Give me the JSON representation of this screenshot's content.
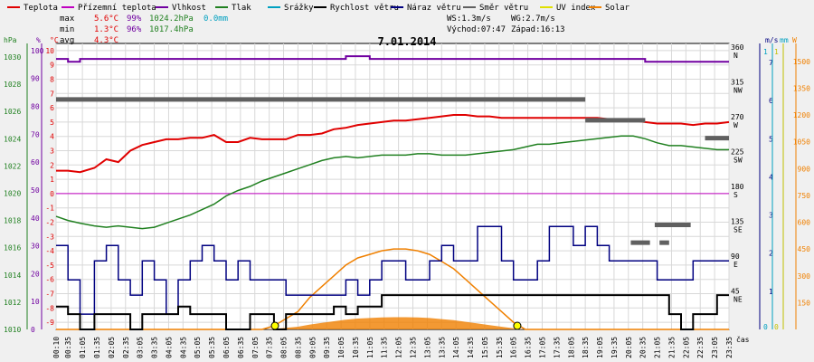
{
  "chart_data": {
    "type": "line",
    "title": "7.01.2014",
    "legend": [
      {
        "name": "Teplota",
        "color": "#e00000"
      },
      {
        "name": "Přízemní teplota",
        "color": "#c000c0"
      },
      {
        "name": "Vlhkost",
        "color": "#7000a0"
      },
      {
        "name": "Tlak",
        "color": "#208020"
      },
      {
        "name": "Srážky",
        "color": "#00a0c0"
      },
      {
        "name": "Rychlost větru",
        "color": "#000000"
      },
      {
        "name": "Náraz větru",
        "color": "#000080"
      },
      {
        "name": "Směr větru",
        "color": "#606060"
      },
      {
        "name": "UV index",
        "color": "#e0e000"
      },
      {
        "name": "Solar",
        "color": "#f08000"
      }
    ],
    "stats": {
      "max_label": "max",
      "max_temp": "5.6°C",
      "max_hum": "99%",
      "max_press": "1024.2hPa",
      "rain": "0.0mm",
      "min_label": "min",
      "min_temp": "1.3°C",
      "min_hum": "96%",
      "min_press": "1017.4hPa",
      "avg_label": "avg",
      "avg_temp": "4.3°C",
      "ws": "WS:1.3m/s",
      "wg": "WG:2.7m/s",
      "sunrise": "Východ:07:47",
      "sunset": "Západ:16:13"
    },
    "axes": {
      "hpa_unit": "hPa",
      "pct_unit": "%",
      "deg_unit": "°C",
      "ms_unit": "m/s",
      "mm_unit": "mm",
      "w_unit": "W",
      "x_unit": "čas",
      "hpa": [
        "1030",
        "1028",
        "1026",
        "1024",
        "1022",
        "1020",
        "1018",
        "1016",
        "1014",
        "1012",
        "1010"
      ],
      "pct": [
        "100",
        "90",
        "80",
        "70",
        "60",
        "50",
        "40",
        "30",
        "20",
        "10",
        "0"
      ],
      "deg": [
        "10",
        "9",
        "8",
        "7",
        "6",
        "5",
        "4",
        "3",
        "2",
        "1",
        "0",
        "-1",
        "-2",
        "-3",
        "-4",
        "-5",
        "-6",
        "-7",
        "-8",
        "-9"
      ],
      "dir": [
        {
          "deg": "360",
          "dir": "N"
        },
        {
          "deg": "315",
          "dir": "NW"
        },
        {
          "deg": "270",
          "dir": "W"
        },
        {
          "deg": "225",
          "dir": "SW"
        },
        {
          "deg": "180",
          "dir": "S"
        },
        {
          "deg": "135",
          "dir": "SE"
        },
        {
          "deg": "90",
          "dir": "E"
        },
        {
          "deg": "45",
          "dir": "NE"
        }
      ],
      "ms": [
        "7",
        "6",
        "5",
        "4",
        "3",
        "2",
        "1"
      ],
      "mm": [
        "1",
        "0"
      ],
      "w": [
        "1500",
        "1350",
        "1200",
        "1050",
        "900",
        "750",
        "600",
        "450",
        "300",
        "150"
      ],
      "uv": [
        "1",
        "0"
      ],
      "temp_range": [
        -9.5,
        10.5
      ],
      "pressure_range": [
        1010,
        1031
      ],
      "wind_ms_range": [
        0,
        7.5
      ],
      "solar_range": [
        0,
        1600
      ]
    },
    "x": [
      "00:10",
      "00:35",
      "01:00",
      "01:30",
      "01:55",
      "02:20",
      "02:45",
      "03:10",
      "03:35",
      "04:00",
      "04:25",
      "04:50",
      "05:15",
      "05:40",
      "06:05",
      "06:30",
      "06:55",
      "07:20",
      "07:45",
      "08:10",
      "08:35",
      "09:00",
      "09:25",
      "09:50",
      "10:15",
      "10:40",
      "11:05",
      "11:30",
      "11:55",
      "12:20",
      "12:45",
      "13:10",
      "13:35",
      "14:00",
      "14:25",
      "14:50",
      "15:15",
      "15:40",
      "16:05",
      "16:30",
      "16:55",
      "17:20",
      "17:45",
      "18:10",
      "18:35",
      "19:00",
      "19:25",
      "19:50",
      "20:15",
      "20:40",
      "21:05",
      "21:30",
      "21:55",
      "22:20",
      "22:45",
      "23:10",
      "23:35"
    ],
    "x_ticks": [
      "00:10",
      "00:35",
      "01:05",
      "01:35",
      "02:05",
      "02:35",
      "03:05",
      "03:35",
      "04:05",
      "04:35",
      "05:05",
      "05:35",
      "06:05",
      "06:35",
      "07:05",
      "07:35",
      "08:05",
      "08:35",
      "09:05",
      "09:35",
      "10:05",
      "10:35",
      "11:05",
      "11:35",
      "12:05",
      "12:35",
      "13:05",
      "13:35",
      "14:05",
      "14:35",
      "15:05",
      "15:35",
      "16:05",
      "16:35",
      "17:05",
      "17:35",
      "18:05",
      "18:35",
      "19:05",
      "19:35",
      "20:05",
      "20:35",
      "21:05",
      "21:35",
      "22:05",
      "22:35",
      "23:05",
      "23:35"
    ],
    "series": [
      {
        "name": "Teplota",
        "unit": "°C",
        "values": [
          1.6,
          1.6,
          1.5,
          1.8,
          2.4,
          2.2,
          3.0,
          3.4,
          3.6,
          3.8,
          3.8,
          3.9,
          3.9,
          4.1,
          3.6,
          3.6,
          3.9,
          3.8,
          3.8,
          3.8,
          4.1,
          4.1,
          4.2,
          4.5,
          4.6,
          4.8,
          4.9,
          5.0,
          5.1,
          5.1,
          5.2,
          5.3,
          5.4,
          5.5,
          5.5,
          5.4,
          5.4,
          5.3,
          5.3,
          5.3,
          5.3,
          5.3,
          5.3,
          5.3,
          5.3,
          5.3,
          5.2,
          5.2,
          5.1,
          5.0,
          4.9,
          4.9,
          4.9,
          4.8,
          4.9,
          4.9,
          5.0
        ]
      },
      {
        "name": "Přízemní teplota",
        "unit": "°C",
        "values": [
          0.0,
          0.0,
          0.0,
          0.0,
          0.0,
          0.0,
          0.0,
          0.0,
          0.0,
          0.0,
          0.0,
          0.0,
          0.0,
          0.0,
          0.0,
          0.0,
          0.0,
          0.0,
          0.0,
          0.0,
          0.0,
          0.0,
          0.0,
          0.0,
          0.0,
          0.0,
          0.0,
          0.0,
          0.0,
          0.0,
          0.0,
          0.0,
          0.0,
          0.0,
          0.0,
          0.0,
          0.0,
          0.0,
          0.0,
          0.0,
          0.0,
          0.0,
          0.0,
          0.0,
          0.0,
          0.0,
          0.0,
          0.0,
          0.0,
          0.0,
          0.0,
          0.0,
          0.0,
          0.0,
          0.0,
          0.0,
          0.0
        ]
      },
      {
        "name": "Vlhkost",
        "unit": "%",
        "values": [
          97,
          96,
          97,
          97,
          97,
          97,
          97,
          97,
          97,
          97,
          97,
          97,
          97,
          97,
          97,
          97,
          97,
          97,
          97,
          97,
          97,
          97,
          97,
          97,
          98,
          98,
          97,
          97,
          97,
          97,
          97,
          97,
          97,
          97,
          97,
          97,
          97,
          97,
          97,
          97,
          97,
          97,
          97,
          97,
          97,
          97,
          97,
          97,
          97,
          96,
          96,
          96,
          96,
          96,
          96,
          96,
          96
        ]
      },
      {
        "name": "Tlak",
        "unit": "hPa",
        "values": [
          1018.3,
          1018.0,
          1017.8,
          1017.6,
          1017.5,
          1017.6,
          1017.5,
          1017.4,
          1017.5,
          1017.8,
          1018.1,
          1018.4,
          1018.8,
          1019.2,
          1019.8,
          1020.2,
          1020.5,
          1020.9,
          1021.2,
          1021.5,
          1021.8,
          1022.1,
          1022.4,
          1022.6,
          1022.7,
          1022.6,
          1022.7,
          1022.8,
          1022.8,
          1022.8,
          1022.9,
          1022.9,
          1022.8,
          1022.8,
          1022.8,
          1022.9,
          1023.0,
          1023.1,
          1023.2,
          1023.4,
          1023.6,
          1023.6,
          1023.7,
          1023.8,
          1023.9,
          1024.0,
          1024.1,
          1024.2,
          1024.2,
          1024.0,
          1023.7,
          1023.5,
          1023.5,
          1023.4,
          1023.3,
          1023.2,
          1023.2
        ]
      },
      {
        "name": "Rychlost větru",
        "unit": "m/s",
        "values": [
          0.6,
          0.4,
          0.0,
          0.4,
          0.4,
          0.4,
          0.0,
          0.4,
          0.4,
          0.4,
          0.6,
          0.4,
          0.4,
          0.4,
          0.0,
          0.0,
          0.4,
          0.4,
          0.0,
          0.4,
          0.4,
          0.4,
          0.4,
          0.6,
          0.4,
          0.6,
          0.6,
          0.9,
          0.9,
          0.9,
          0.9,
          0.9,
          0.9,
          0.9,
          0.9,
          0.9,
          0.9,
          0.9,
          0.9,
          0.9,
          0.9,
          0.9,
          0.9,
          0.9,
          0.9,
          0.9,
          0.9,
          0.9,
          0.9,
          0.9,
          0.9,
          0.4,
          0.0,
          0.4,
          0.4,
          0.9,
          0.9
        ]
      },
      {
        "name": "Náraz větru",
        "unit": "m/s",
        "values": [
          2.2,
          1.3,
          0.4,
          1.8,
          2.2,
          1.3,
          0.9,
          1.8,
          1.3,
          0.4,
          1.3,
          1.8,
          2.2,
          1.8,
          1.3,
          1.8,
          1.3,
          1.3,
          1.3,
          0.9,
          0.9,
          0.9,
          0.9,
          0.9,
          1.3,
          0.9,
          1.3,
          1.8,
          1.8,
          1.3,
          1.3,
          1.8,
          2.2,
          1.8,
          1.8,
          2.7,
          2.7,
          1.8,
          1.3,
          1.3,
          1.8,
          2.7,
          2.7,
          2.2,
          2.7,
          2.2,
          1.8,
          1.8,
          1.8,
          1.8,
          1.3,
          1.3,
          1.3,
          1.8,
          1.8,
          1.8,
          1.8
        ]
      },
      {
        "name": "Směr větru",
        "unit": "°",
        "values": [
          297,
          297,
          297,
          297,
          297,
          297,
          297,
          297,
          297,
          297,
          297,
          297,
          297,
          297,
          297,
          297,
          297,
          297,
          297,
          297,
          297,
          297,
          297,
          297,
          297,
          297,
          297,
          297,
          297,
          297,
          297,
          297,
          297,
          297,
          297,
          297,
          297,
          297,
          297,
          297,
          297,
          297,
          297,
          297,
          270,
          270,
          270,
          270,
          270,
          null,
          null,
          null,
          null,
          null,
          247,
          247,
          247
        ]
      },
      {
        "name": "Solar",
        "unit": "W",
        "values": [
          0,
          0,
          0,
          0,
          0,
          0,
          0,
          0,
          0,
          0,
          0,
          0,
          0,
          0,
          0,
          0,
          0,
          0,
          20,
          60,
          100,
          180,
          240,
          300,
          360,
          400,
          420,
          440,
          450,
          450,
          440,
          420,
          380,
          340,
          280,
          220,
          160,
          100,
          40,
          0,
          0,
          0,
          0,
          0,
          0,
          0,
          0,
          0,
          0,
          0,
          0,
          0,
          0,
          0,
          0,
          0,
          0
        ]
      },
      {
        "name": "UV index",
        "unit": "",
        "values": [
          0,
          0,
          0,
          0,
          0,
          0,
          0,
          0,
          0,
          0,
          0,
          0,
          0,
          0,
          0,
          0,
          0,
          0,
          0,
          0,
          0,
          0,
          0,
          0,
          0,
          0,
          0,
          0,
          0,
          0,
          0,
          0,
          0,
          0,
          0,
          0,
          0,
          0,
          0,
          0,
          0,
          0,
          0,
          0,
          0,
          0,
          0,
          0,
          0,
          0,
          0,
          0,
          0,
          0,
          0,
          0,
          0
        ]
      }
    ],
    "wind_direction_extra": [
      {
        "from": "21:00",
        "to": "22:15",
        "deg": 135
      },
      {
        "from": "20:10",
        "to": "20:50",
        "deg": 112
      },
      {
        "from": "21:10",
        "to": "21:30",
        "deg": 112
      }
    ],
    "sun_markers": [
      "07:47",
      "16:13"
    ]
  }
}
